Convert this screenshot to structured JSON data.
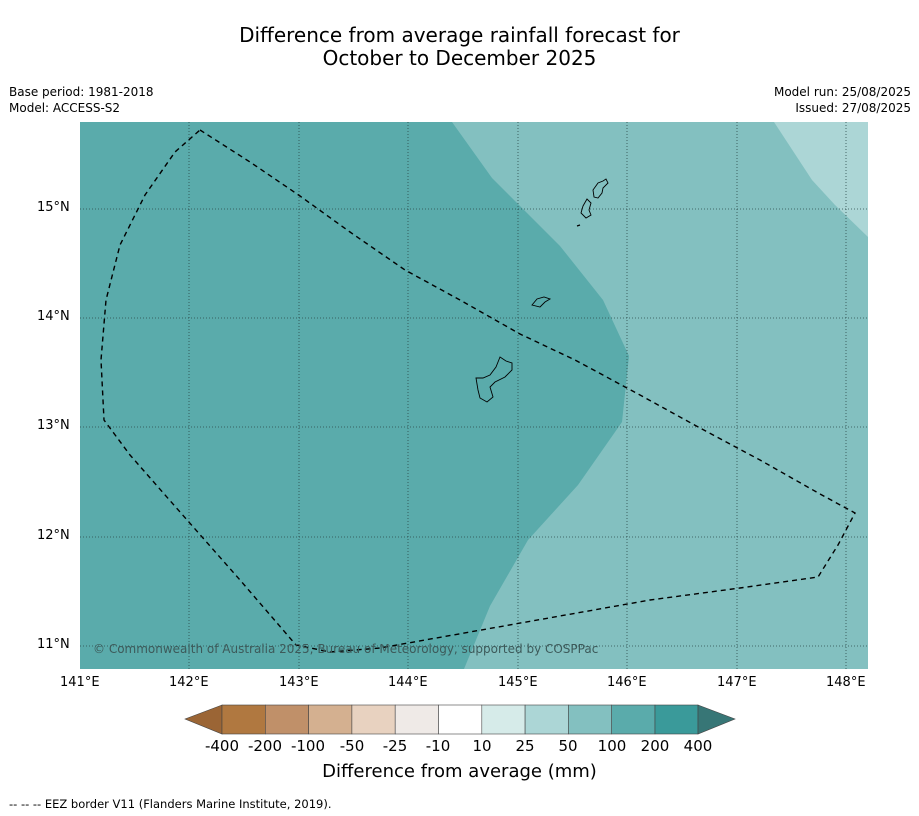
{
  "title": {
    "line1": "Difference from average rainfall forecast for",
    "line2": "October to December 2025"
  },
  "meta_left": {
    "base_period": "Base period: 1981-2018",
    "model": "Model: ACCESS-S2"
  },
  "meta_right": {
    "model_run": "Model run: 25/08/2025",
    "issued": "Issued: 27/08/2025"
  },
  "map": {
    "lon_ticks": [
      "141°E",
      "142°E",
      "143°E",
      "144°E",
      "145°E",
      "146°E",
      "147°E",
      "148°E"
    ],
    "lat_ticks": [
      "15°N",
      "14°N",
      "13°N",
      "12°N",
      "11°N"
    ],
    "lon_range": [
      141.0,
      148.2
    ],
    "lat_range": [
      10.8,
      15.8
    ],
    "copyright": "© Commonwealth of Australia 2025, Bureau of Meteorology, supported by COSPPac",
    "zones": [
      {
        "category": "100 to 200",
        "color": "#5aabab"
      },
      {
        "category": "50 to 100",
        "color": "#83c0c0"
      },
      {
        "category": "25 to 50",
        "color": "#acd6d6"
      }
    ]
  },
  "colorbar": {
    "labels": [
      "-400",
      "-200",
      "-100",
      "-50",
      "-25",
      "-10",
      "10",
      "25",
      "50",
      "100",
      "200",
      "400"
    ],
    "colors": [
      "#9b6535",
      "#b07840",
      "#c09069",
      "#d4b090",
      "#e8d2c0",
      "#efeae7",
      "#ffffff",
      "#d6ebe9",
      "#acd6d6",
      "#83c0c0",
      "#5aabab",
      "#3a9a9a",
      "#377676"
    ],
    "title": "Difference from average (mm)"
  },
  "footnote": "-- -- -- EEZ border V11 (Flanders Marine Institute, 2019)."
}
